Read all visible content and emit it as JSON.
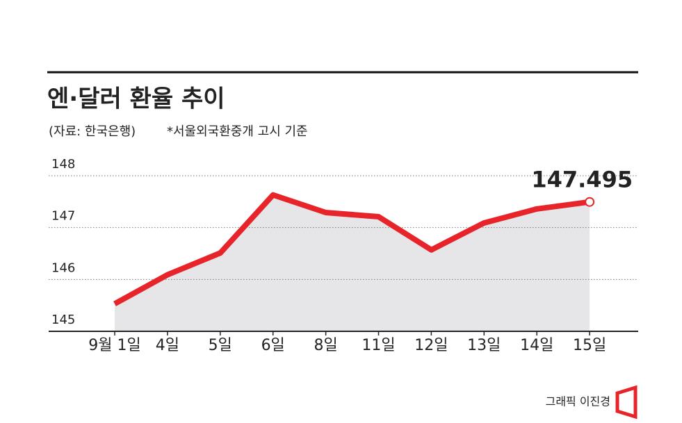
{
  "chart_data": {
    "type": "line",
    "title": "엔·달러 환율 추이",
    "source": "(자료: 한국은행)",
    "note": "*서울외국환중개 고시 기준",
    "credit": "그래픽 이진경",
    "categories": [
      "9월 1일",
      "4일",
      "5일",
      "6일",
      "8일",
      "11일",
      "12일",
      "13일",
      "14일",
      "15일"
    ],
    "values": [
      145.53,
      146.09,
      146.51,
      147.63,
      147.29,
      147.21,
      146.57,
      147.09,
      147.36,
      147.495
    ],
    "color": "#e8242b",
    "area_color": "#e6e6e8",
    "ylim": [
      145,
      148
    ],
    "yticks": [
      145,
      146,
      147,
      148
    ],
    "grid": true
  }
}
